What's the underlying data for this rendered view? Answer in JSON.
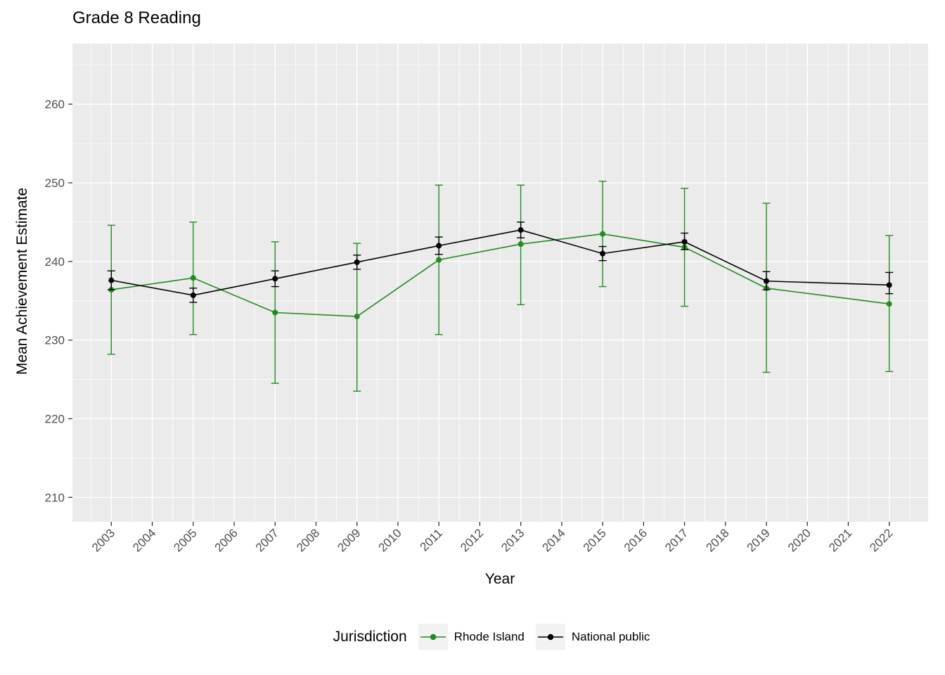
{
  "legend": {
    "title": "Jurisdiction",
    "items": [
      {
        "label": "Rhode Island",
        "color": "#228B22"
      },
      {
        "label": "National public",
        "color": "#000000"
      }
    ]
  },
  "chart_data": {
    "type": "line",
    "title": "Grade 8 Reading",
    "xlabel": "Year",
    "ylabel": "Mean Achievement Estimate",
    "x_ticks": [
      2003,
      2004,
      2005,
      2006,
      2007,
      2008,
      2009,
      2010,
      2011,
      2012,
      2013,
      2014,
      2015,
      2016,
      2017,
      2018,
      2019,
      2020,
      2021,
      2022
    ],
    "y_ticks": [
      210,
      220,
      230,
      240,
      250,
      260
    ],
    "xlim": [
      2002.05,
      2022.95
    ],
    "ylim": [
      206.9,
      267.7
    ],
    "grid": true,
    "legend_position": "bottom",
    "panel_background": "#ebebeb",
    "x": [
      2003,
      2005,
      2007,
      2009,
      2011,
      2013,
      2015,
      2017,
      2019,
      2022
    ],
    "series": [
      {
        "name": "Rhode Island",
        "color": "#228B22",
        "values": [
          236.4,
          237.9,
          233.5,
          233.0,
          240.2,
          242.2,
          243.5,
          241.8,
          236.6,
          234.6
        ],
        "lower": [
          228.2,
          230.7,
          224.5,
          223.5,
          230.7,
          234.5,
          236.8,
          234.3,
          225.9,
          226.0
        ],
        "upper": [
          244.6,
          245.0,
          242.5,
          242.3,
          249.7,
          249.7,
          250.2,
          249.3,
          247.4,
          243.3
        ]
      },
      {
        "name": "National public",
        "color": "#000000",
        "values": [
          237.6,
          235.7,
          237.8,
          239.9,
          242.0,
          244.0,
          241.0,
          242.5,
          237.5,
          237.0
        ],
        "lower": [
          236.4,
          234.8,
          236.8,
          239.0,
          240.9,
          243.0,
          240.1,
          241.5,
          236.4,
          235.9
        ],
        "upper": [
          238.8,
          236.6,
          238.8,
          240.8,
          243.1,
          245.0,
          241.9,
          243.6,
          238.7,
          238.6
        ]
      }
    ]
  }
}
